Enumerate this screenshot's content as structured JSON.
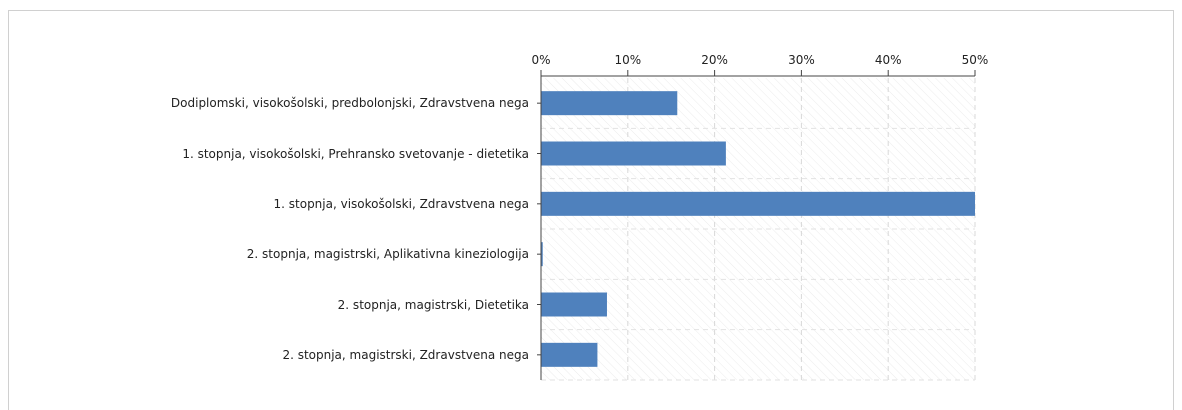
{
  "chart_data": {
    "type": "barh",
    "categories": [
      "Dodiplomski, visokošolski, predbolonjski,  Zdravstvena nega",
      "1. stopnja, visokošolski,  Prehransko svetovanje - dietetika",
      "1. stopnja, visokošolski,  Zdravstvena nega",
      "2. stopnja, magistrski, Aplikativna kineziologija",
      "2. stopnja, magistrski, Dietetika",
      "2. stopnja, magistrski, Zdravstvena nega"
    ],
    "values": [
      15.7,
      21.3,
      50,
      0.2,
      7.6,
      6.5
    ],
    "color": "#4f81bd",
    "xlim": [
      0,
      50
    ],
    "xticks": [
      {
        "value": 0,
        "label": "0%"
      },
      {
        "value": 10,
        "label": "10%"
      },
      {
        "value": 20,
        "label": "20%"
      },
      {
        "value": 30,
        "label": "30%"
      },
      {
        "value": 40,
        "label": "40%"
      },
      {
        "value": 50,
        "label": "50%"
      }
    ],
    "grid": true
  }
}
